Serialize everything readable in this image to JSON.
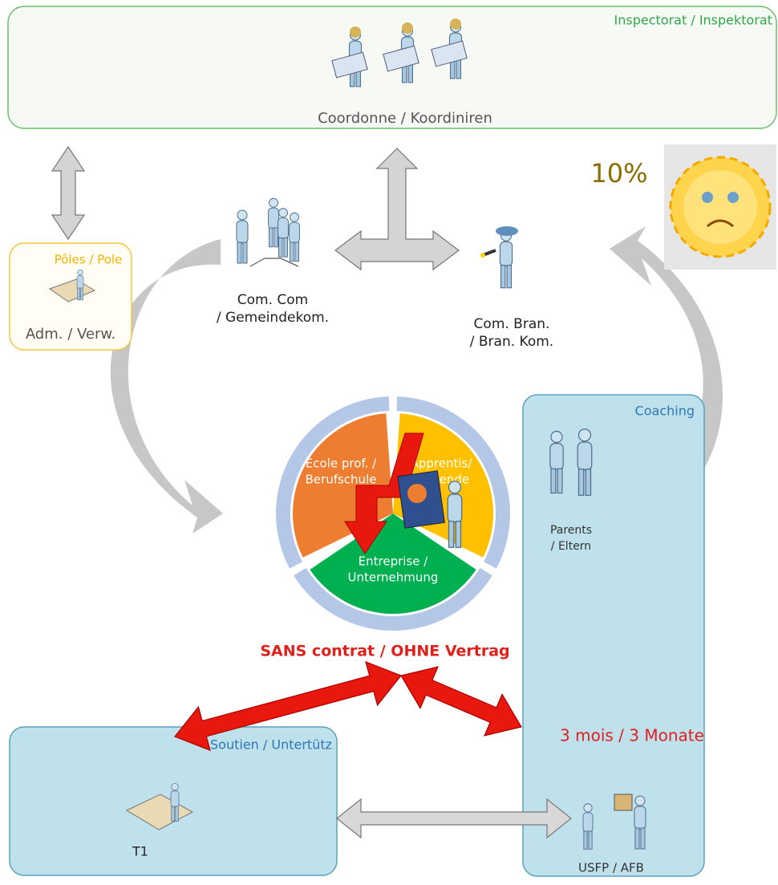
{
  "header": {
    "title": "Inspectorat / Inspektorat",
    "subtitle": "Coordonne / Koordiniren"
  },
  "mood": "10%",
  "poles": {
    "title": "Pôles / Pole",
    "label": "Adm. / Verw."
  },
  "com_com": {
    "lines": [
      "Com. Com",
      "/ Gemeindekom."
    ]
  },
  "com_bran": {
    "lines": [
      "Com. Bran.",
      "/ Bran. Kom."
    ]
  },
  "cycle": {
    "segments": [
      {
        "lines": [
          "Ecole prof. /",
          "Berufschule"
        ]
      },
      {
        "lines": [
          "Apprentis/",
          "Lernende"
        ]
      },
      {
        "lines": [
          "Entreprise /",
          "Unternehmung"
        ]
      }
    ]
  },
  "contract": "SANS contrat / OHNE Vertrag",
  "coaching": {
    "title": "Coaching",
    "parents": [
      "Parents",
      "/ Eltern"
    ],
    "note": "3 mois / 3 Monate",
    "label": "USFP / AFB"
  },
  "support": {
    "title": "Soutien / Untertütz",
    "label": "T1"
  }
}
